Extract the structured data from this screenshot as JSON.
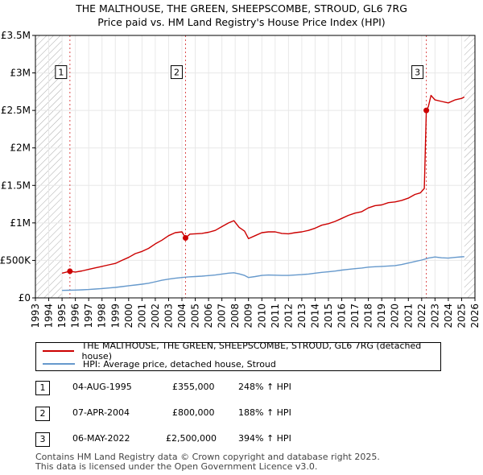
{
  "title": {
    "line1": "THE MALTHOUSE, THE GREEN, SHEEPSCOMBE, STROUD, GL6 7RG",
    "line2": "Price paid vs. HM Land Registry's House Price Index (HPI)"
  },
  "colors": {
    "property": "#cc0000",
    "hpi": "#6699cc",
    "hatch": "#999999",
    "grid": "#e8e8e8"
  },
  "chart_data": {
    "type": "line",
    "xlim": [
      1993,
      2026
    ],
    "ylim": [
      0,
      3500000
    ],
    "y_ticks": [
      {
        "value": 0,
        "label": "£0"
      },
      {
        "value": 500000,
        "label": "£500K"
      },
      {
        "value": 1000000,
        "label": "£1M"
      },
      {
        "value": 1500000,
        "label": "£1.5M"
      },
      {
        "value": 2000000,
        "label": "£2M"
      },
      {
        "value": 2500000,
        "label": "£2.5M"
      },
      {
        "value": 3000000,
        "label": "£3M"
      },
      {
        "value": 3500000,
        "label": "£3.5M"
      }
    ],
    "x_ticks": [
      "1993",
      "1994",
      "1995",
      "1996",
      "1997",
      "1998",
      "1999",
      "2000",
      "2001",
      "2002",
      "2003",
      "2004",
      "2005",
      "2006",
      "2007",
      "2008",
      "2009",
      "2010",
      "2011",
      "2012",
      "2013",
      "2014",
      "2015",
      "2016",
      "2017",
      "2018",
      "2019",
      "2020",
      "2021",
      "2022",
      "2023",
      "2024",
      "2025",
      "2026"
    ],
    "hatched_ranges": [
      [
        1993,
        1995.0
      ],
      [
        2025.2,
        2026
      ]
    ],
    "series": [
      {
        "name": "THE MALTHOUSE, THE GREEN, SHEEPSCOMBE, STROUD, GL6 7RG (detached house)",
        "color": "#cc0000",
        "points": [
          [
            1995.0,
            330000
          ],
          [
            1995.59,
            355000
          ],
          [
            1996.0,
            345000
          ],
          [
            1996.5,
            360000
          ],
          [
            1997.0,
            380000
          ],
          [
            1997.5,
            400000
          ],
          [
            1998.0,
            420000
          ],
          [
            1998.5,
            440000
          ],
          [
            1999.0,
            460000
          ],
          [
            1999.5,
            500000
          ],
          [
            2000.0,
            540000
          ],
          [
            2000.5,
            590000
          ],
          [
            2001.0,
            620000
          ],
          [
            2001.5,
            660000
          ],
          [
            2002.0,
            720000
          ],
          [
            2002.5,
            770000
          ],
          [
            2003.0,
            830000
          ],
          [
            2003.5,
            870000
          ],
          [
            2004.0,
            880000
          ],
          [
            2004.27,
            800000
          ],
          [
            2004.6,
            850000
          ],
          [
            2005.0,
            855000
          ],
          [
            2005.5,
            860000
          ],
          [
            2006.0,
            875000
          ],
          [
            2006.5,
            900000
          ],
          [
            2007.0,
            950000
          ],
          [
            2007.5,
            1000000
          ],
          [
            2007.9,
            1030000
          ],
          [
            2008.3,
            940000
          ],
          [
            2008.7,
            890000
          ],
          [
            2009.0,
            790000
          ],
          [
            2009.5,
            830000
          ],
          [
            2010.0,
            870000
          ],
          [
            2010.5,
            880000
          ],
          [
            2011.0,
            880000
          ],
          [
            2011.5,
            860000
          ],
          [
            2012.0,
            855000
          ],
          [
            2012.5,
            870000
          ],
          [
            2013.0,
            880000
          ],
          [
            2013.5,
            900000
          ],
          [
            2014.0,
            930000
          ],
          [
            2014.5,
            970000
          ],
          [
            2015.0,
            990000
          ],
          [
            2015.5,
            1020000
          ],
          [
            2016.0,
            1060000
          ],
          [
            2016.5,
            1100000
          ],
          [
            2017.0,
            1130000
          ],
          [
            2017.5,
            1150000
          ],
          [
            2018.0,
            1200000
          ],
          [
            2018.5,
            1230000
          ],
          [
            2019.0,
            1240000
          ],
          [
            2019.5,
            1270000
          ],
          [
            2020.0,
            1280000
          ],
          [
            2020.5,
            1300000
          ],
          [
            2021.0,
            1330000
          ],
          [
            2021.5,
            1380000
          ],
          [
            2021.9,
            1400000
          ],
          [
            2022.2,
            1460000
          ],
          [
            2022.35,
            2500000
          ],
          [
            2022.5,
            2550000
          ],
          [
            2022.7,
            2700000
          ],
          [
            2023.0,
            2640000
          ],
          [
            2023.5,
            2620000
          ],
          [
            2024.0,
            2600000
          ],
          [
            2024.5,
            2640000
          ],
          [
            2025.0,
            2660000
          ],
          [
            2025.2,
            2680000
          ]
        ]
      },
      {
        "name": "HPI: Average price, detached house, Stroud",
        "color": "#6699cc",
        "points": [
          [
            1995.0,
            100000
          ],
          [
            1995.5,
            102000
          ],
          [
            1996.0,
            104000
          ],
          [
            1996.5,
            107000
          ],
          [
            1997.0,
            112000
          ],
          [
            1997.5,
            118000
          ],
          [
            1998.0,
            125000
          ],
          [
            1998.5,
            132000
          ],
          [
            1999.0,
            140000
          ],
          [
            1999.5,
            150000
          ],
          [
            2000.0,
            162000
          ],
          [
            2000.5,
            172000
          ],
          [
            2001.0,
            182000
          ],
          [
            2001.5,
            195000
          ],
          [
            2002.0,
            215000
          ],
          [
            2002.5,
            235000
          ],
          [
            2003.0,
            250000
          ],
          [
            2003.5,
            262000
          ],
          [
            2004.0,
            272000
          ],
          [
            2004.5,
            280000
          ],
          [
            2005.0,
            285000
          ],
          [
            2005.5,
            290000
          ],
          [
            2006.0,
            297000
          ],
          [
            2006.5,
            305000
          ],
          [
            2007.0,
            318000
          ],
          [
            2007.5,
            330000
          ],
          [
            2007.9,
            335000
          ],
          [
            2008.3,
            320000
          ],
          [
            2008.7,
            300000
          ],
          [
            2009.0,
            272000
          ],
          [
            2009.5,
            285000
          ],
          [
            2010.0,
            300000
          ],
          [
            2010.5,
            305000
          ],
          [
            2011.0,
            303000
          ],
          [
            2011.5,
            300000
          ],
          [
            2012.0,
            300000
          ],
          [
            2012.5,
            305000
          ],
          [
            2013.0,
            310000
          ],
          [
            2013.5,
            318000
          ],
          [
            2014.0,
            330000
          ],
          [
            2014.5,
            340000
          ],
          [
            2015.0,
            348000
          ],
          [
            2015.5,
            358000
          ],
          [
            2016.0,
            370000
          ],
          [
            2016.5,
            380000
          ],
          [
            2017.0,
            390000
          ],
          [
            2017.5,
            398000
          ],
          [
            2018.0,
            410000
          ],
          [
            2018.5,
            415000
          ],
          [
            2019.0,
            420000
          ],
          [
            2019.5,
            425000
          ],
          [
            2020.0,
            430000
          ],
          [
            2020.5,
            445000
          ],
          [
            2021.0,
            465000
          ],
          [
            2021.5,
            485000
          ],
          [
            2022.0,
            505000
          ],
          [
            2022.5,
            530000
          ],
          [
            2023.0,
            545000
          ],
          [
            2023.5,
            535000
          ],
          [
            2024.0,
            530000
          ],
          [
            2024.5,
            540000
          ],
          [
            2025.0,
            548000
          ],
          [
            2025.2,
            550000
          ]
        ]
      }
    ],
    "sales": [
      {
        "num": "1",
        "date": "04-AUG-1995",
        "price": "£355,000",
        "hpi": "248% ↑ HPI",
        "x": 1995.59,
        "y": 355000
      },
      {
        "num": "2",
        "date": "07-APR-2004",
        "price": "£800,000",
        "hpi": "188% ↑ HPI",
        "x": 2004.27,
        "y": 800000
      },
      {
        "num": "3",
        "date": "06-MAY-2022",
        "price": "£2,500,000",
        "hpi": "394% ↑ HPI",
        "x": 2022.35,
        "y": 2500000
      }
    ]
  },
  "legend": {
    "property_label": "THE MALTHOUSE, THE GREEN, SHEEPSCOMBE, STROUD, GL6 7RG (detached house)",
    "hpi_label": "HPI: Average price, detached house, Stroud"
  },
  "footer": {
    "line1": "Contains HM Land Registry data © Crown copyright and database right 2025.",
    "line2": "This data is licensed under the Open Government Licence v3.0."
  }
}
